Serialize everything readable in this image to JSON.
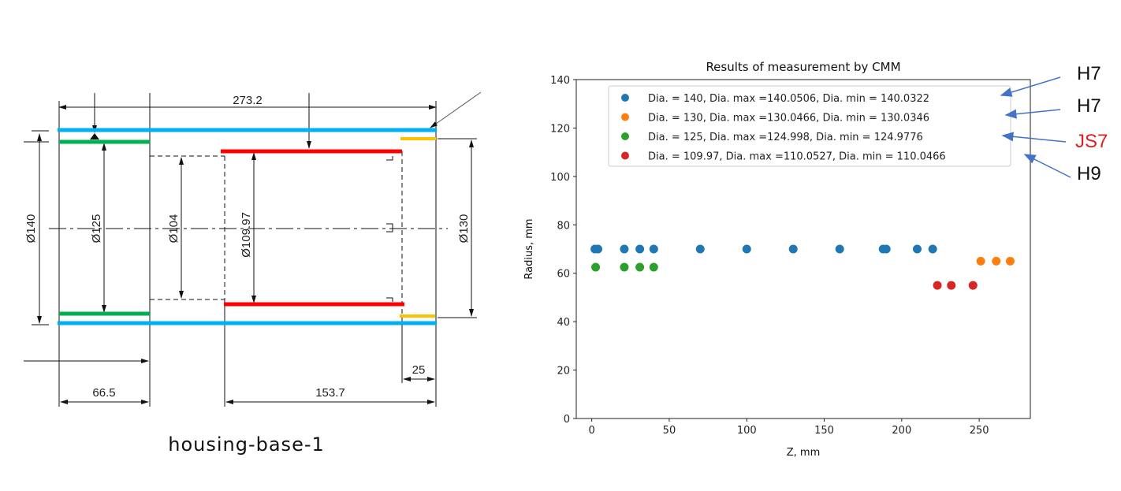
{
  "drawing": {
    "caption": "housing-base-1",
    "dimensions": {
      "overall_length": "273.2",
      "dia_140": "Ø140",
      "dia_125": "Ø125",
      "dia_104": "Ø104",
      "dia_109_97": "Ø109.97",
      "dia_130": "Ø130",
      "len_66_5": "66.5",
      "len_153_7": "153.7",
      "len_25": "25"
    },
    "colors": {
      "dia_140": "#00b0f0",
      "dia_125": "#00b050",
      "dia_109_97": "#ff0000",
      "dia_130": "#ffc000"
    }
  },
  "annotations": [
    {
      "label": "H7",
      "color": "#111111"
    },
    {
      "label": "H7",
      "color": "#111111"
    },
    {
      "label": "JS7",
      "color": "#e02020"
    },
    {
      "label": "H9",
      "color": "#111111"
    }
  ],
  "arrow_color": "#4472c4",
  "chart_data": {
    "type": "scatter",
    "title": "Results of measurement by CMM",
    "xlabel": "Z, mm",
    "ylabel": "Radius, mm",
    "xlim": [
      -10,
      283
    ],
    "ylim": [
      0,
      140
    ],
    "xticks": [
      0,
      50,
      100,
      150,
      200,
      250
    ],
    "yticks": [
      0,
      20,
      40,
      60,
      80,
      100,
      120,
      140
    ],
    "grid": false,
    "legend_position": "top-right",
    "series": [
      {
        "name": "Dia. = 140, Dia. max =140.0506, Dia. min = 140.0322",
        "color": "#1f77b4",
        "x": [
          2,
          4,
          21,
          31,
          40,
          70,
          100,
          130,
          160,
          188,
          190,
          210,
          220
        ],
        "y": [
          70,
          70,
          70,
          70,
          70,
          70,
          70,
          70,
          70,
          70,
          70,
          70,
          70
        ]
      },
      {
        "name": "Dia. = 130, Dia. max =130.0466, Dia. min = 130.0346",
        "color": "#ff7f0e",
        "x": [
          251,
          261,
          270
        ],
        "y": [
          65,
          65,
          65
        ]
      },
      {
        "name": "Dia. = 125, Dia. max =124.998, Dia. min = 124.9776",
        "color": "#2ca02c",
        "x": [
          2.5,
          21,
          31,
          40
        ],
        "y": [
          62.5,
          62.5,
          62.5,
          62.5
        ]
      },
      {
        "name": "Dia. = 109.97, Dia. max =110.0527, Dia. min = 110.0466",
        "color": "#d62728",
        "x": [
          223,
          232,
          246
        ],
        "y": [
          55,
          55,
          55
        ]
      }
    ]
  }
}
